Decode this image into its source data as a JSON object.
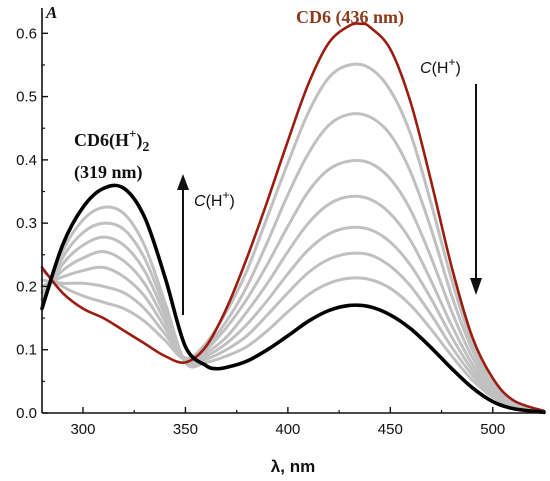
{
  "chart_data": {
    "type": "line",
    "title": "",
    "xlabel": "λ, nm",
    "ylabel": "A",
    "xlim": [
      280,
      525
    ],
    "ylim": [
      0,
      0.64
    ],
    "x_ticks": [
      300,
      350,
      400,
      450,
      500
    ],
    "y_ticks": [
      0.0,
      0.1,
      0.2,
      0.3,
      0.4,
      0.5,
      0.6
    ],
    "x_tick_labels": [
      "300",
      "350",
      "400",
      "450",
      "500"
    ],
    "y_tick_labels": [
      "0.0",
      "0.1",
      "0.2",
      "0.3",
      "0.4",
      "0.5",
      "0.6"
    ],
    "grid": false,
    "colors": {
      "neutral": "#9b1c10",
      "neutral_left": "#8a5a2a",
      "protonated": "#000000",
      "intermediate": "#c0c0c0",
      "label_cd6": "#8b3a1a",
      "label_cd6h": "#111111"
    },
    "series": [
      {
        "x": [
          280,
          290,
          300,
          310,
          320,
          330,
          340,
          350,
          360,
          370,
          380,
          390,
          400,
          410,
          420,
          430,
          436,
          440,
          450,
          460,
          470,
          480,
          490,
          500,
          510,
          525
        ],
        "y": [
          0.23,
          0.19,
          0.165,
          0.15,
          0.13,
          0.11,
          0.09,
          0.08,
          0.105,
          0.165,
          0.245,
          0.335,
          0.43,
          0.52,
          0.585,
          0.612,
          0.615,
          0.61,
          0.575,
          0.49,
          0.365,
          0.23,
          0.12,
          0.055,
          0.02,
          0.003
        ]
      },
      {
        "x": [
          280,
          290,
          300,
          310,
          320,
          330,
          340,
          350,
          360,
          370,
          380,
          390,
          400,
          410,
          420,
          430,
          440,
          450,
          460,
          470,
          480,
          490,
          500,
          510,
          525
        ],
        "y": [
          0.225,
          0.2,
          0.185,
          0.175,
          0.165,
          0.145,
          0.115,
          0.085,
          0.11,
          0.16,
          0.225,
          0.31,
          0.395,
          0.475,
          0.53,
          0.55,
          0.545,
          0.51,
          0.44,
          0.33,
          0.21,
          0.11,
          0.05,
          0.018,
          0.003
        ]
      },
      {
        "x": [
          280,
          290,
          300,
          310,
          320,
          330,
          340,
          350,
          360,
          370,
          380,
          390,
          400,
          410,
          420,
          430,
          440,
          450,
          460,
          470,
          480,
          490,
          500,
          510,
          525
        ],
        "y": [
          0.21,
          0.205,
          0.205,
          0.2,
          0.19,
          0.165,
          0.125,
          0.087,
          0.105,
          0.145,
          0.2,
          0.27,
          0.345,
          0.41,
          0.455,
          0.472,
          0.468,
          0.44,
          0.38,
          0.29,
          0.185,
          0.1,
          0.045,
          0.016,
          0.003
        ]
      },
      {
        "x": [
          280,
          290,
          300,
          310,
          320,
          330,
          340,
          350,
          360,
          370,
          380,
          390,
          400,
          410,
          420,
          430,
          440,
          450,
          460,
          470,
          480,
          490,
          500,
          510,
          525
        ],
        "y": [
          0.2,
          0.215,
          0.225,
          0.23,
          0.215,
          0.185,
          0.135,
          0.085,
          0.1,
          0.135,
          0.18,
          0.235,
          0.295,
          0.35,
          0.385,
          0.398,
          0.395,
          0.37,
          0.32,
          0.245,
          0.16,
          0.088,
          0.04,
          0.015,
          0.003
        ]
      },
      {
        "x": [
          280,
          290,
          300,
          310,
          320,
          330,
          340,
          350,
          360,
          370,
          380,
          390,
          400,
          410,
          420,
          430,
          440,
          450,
          460,
          470,
          480,
          490,
          500,
          510,
          525
        ],
        "y": [
          0.19,
          0.225,
          0.245,
          0.255,
          0.24,
          0.205,
          0.145,
          0.083,
          0.095,
          0.12,
          0.16,
          0.205,
          0.255,
          0.3,
          0.33,
          0.342,
          0.338,
          0.315,
          0.272,
          0.208,
          0.138,
          0.077,
          0.036,
          0.014,
          0.003
        ]
      },
      {
        "x": [
          280,
          290,
          300,
          310,
          320,
          330,
          340,
          350,
          360,
          370,
          380,
          390,
          400,
          410,
          420,
          430,
          440,
          450,
          460,
          470,
          480,
          490,
          500,
          510,
          525
        ],
        "y": [
          0.18,
          0.235,
          0.265,
          0.278,
          0.265,
          0.225,
          0.155,
          0.082,
          0.09,
          0.11,
          0.14,
          0.178,
          0.22,
          0.258,
          0.283,
          0.293,
          0.29,
          0.27,
          0.233,
          0.18,
          0.12,
          0.068,
          0.032,
          0.012,
          0.002
        ]
      },
      {
        "x": [
          280,
          290,
          300,
          310,
          320,
          330,
          340,
          350,
          360,
          370,
          380,
          390,
          400,
          410,
          420,
          430,
          440,
          450,
          460,
          470,
          480,
          490,
          500,
          510,
          525
        ],
        "y": [
          0.17,
          0.245,
          0.285,
          0.3,
          0.29,
          0.245,
          0.165,
          0.081,
          0.085,
          0.1,
          0.122,
          0.155,
          0.19,
          0.222,
          0.243,
          0.252,
          0.25,
          0.232,
          0.2,
          0.155,
          0.104,
          0.06,
          0.028,
          0.011,
          0.002
        ]
      },
      {
        "x": [
          280,
          290,
          300,
          310,
          320,
          330,
          340,
          350,
          360,
          370,
          380,
          390,
          400,
          410,
          420,
          430,
          440,
          450,
          460,
          470,
          480,
          490,
          500,
          510,
          525
        ],
        "y": [
          0.165,
          0.255,
          0.305,
          0.325,
          0.315,
          0.265,
          0.175,
          0.08,
          0.08,
          0.09,
          0.105,
          0.13,
          0.16,
          0.187,
          0.205,
          0.213,
          0.211,
          0.197,
          0.17,
          0.132,
          0.09,
          0.052,
          0.025,
          0.01,
          0.002
        ]
      },
      {
        "x": [
          280,
          290,
          300,
          310,
          320,
          330,
          340,
          350,
          360,
          365,
          370,
          380,
          390,
          400,
          410,
          420,
          430,
          440,
          450,
          460,
          470,
          480,
          490,
          500,
          510,
          525
        ],
        "y": [
          0.165,
          0.265,
          0.325,
          0.355,
          0.355,
          0.31,
          0.215,
          0.105,
          0.075,
          0.07,
          0.072,
          0.082,
          0.1,
          0.122,
          0.145,
          0.162,
          0.17,
          0.168,
          0.155,
          0.133,
          0.103,
          0.07,
          0.04,
          0.018,
          0.007,
          0.001
        ]
      }
    ],
    "annotations": {
      "cd6_label": "CD6 (436 nm)",
      "cd6h_base": "CD6(H",
      "cd6h_sup": "+",
      "cd6h_close": ")",
      "cd6h_sub": "2",
      "cd6h_wl": "(319 nm)",
      "arrow_up_c": "C",
      "arrow_up_h": "(H",
      "arrow_up_sup": "+",
      "arrow_up_close": ")",
      "arrow_down_c": "C",
      "arrow_down_h": "(H",
      "arrow_down_sup": "+",
      "arrow_down_close": ")"
    }
  }
}
